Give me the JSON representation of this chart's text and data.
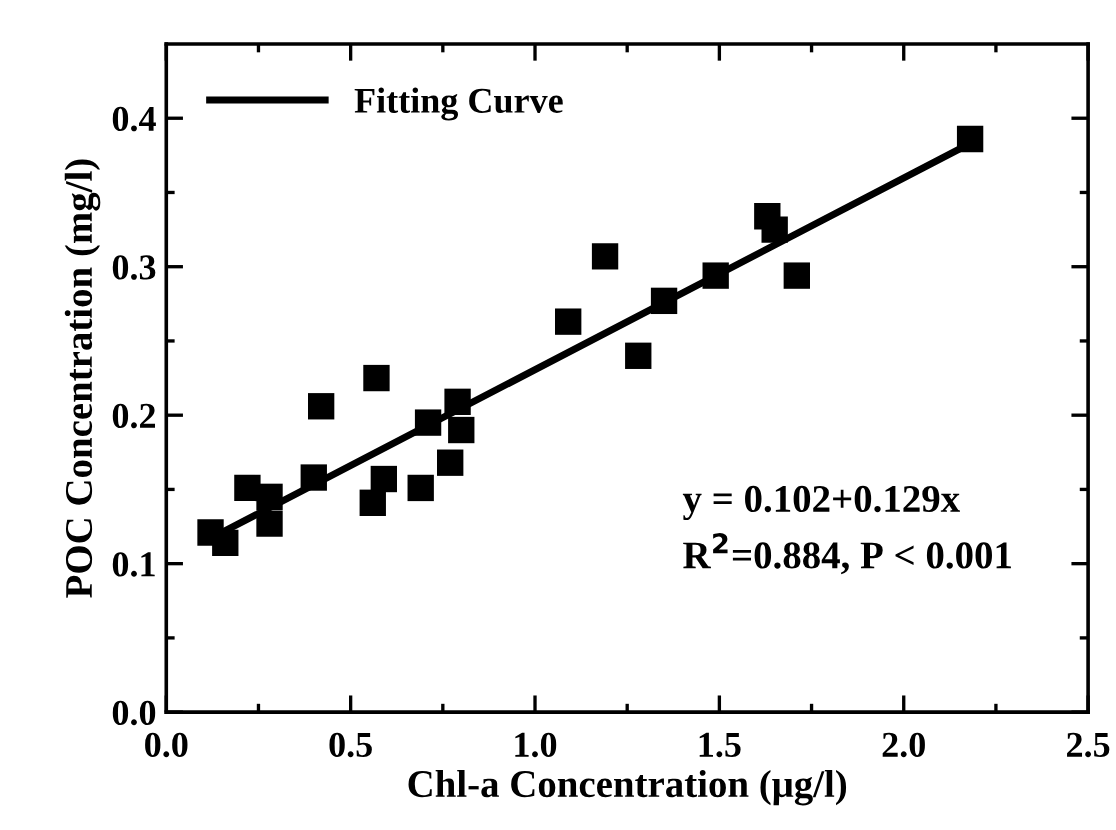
{
  "chart_data": {
    "type": "scatter",
    "xlabel": "Chl-a Concentration (μg/l)",
    "ylabel": "POC Concentration (mg/l)",
    "xlim": [
      0,
      2.5
    ],
    "ylim": [
      0,
      0.45
    ],
    "xticks": [
      {
        "value": 0,
        "label": "0.0"
      },
      {
        "value": 0.25,
        "label": null
      },
      {
        "value": 0.5,
        "label": "0.5"
      },
      {
        "value": 0.75,
        "label": null
      },
      {
        "value": 1,
        "label": "1.0"
      },
      {
        "value": 1.25,
        "label": null
      },
      {
        "value": 1.5,
        "label": "1.5"
      },
      {
        "value": 1.75,
        "label": null
      },
      {
        "value": 2,
        "label": "2.0"
      },
      {
        "value": 2.25,
        "label": null
      },
      {
        "value": 2.5,
        "label": "2.5"
      }
    ],
    "yticks": [
      {
        "value": 0,
        "label": "0.0"
      },
      {
        "value": 0.05,
        "label": null
      },
      {
        "value": 0.1,
        "label": "0.1"
      },
      {
        "value": 0.15,
        "label": null
      },
      {
        "value": 0.2,
        "label": "0.2"
      },
      {
        "value": 0.25,
        "label": null
      },
      {
        "value": 0.3,
        "label": "0.3"
      },
      {
        "value": 0.35,
        "label": null
      },
      {
        "value": 0.4,
        "label": "0.4"
      }
    ],
    "grid": false,
    "legend": "top left",
    "series": [
      {
        "marker": "square",
        "color": "#000000",
        "x": [
          0.12,
          0.16,
          0.22,
          0.28,
          0.28,
          0.4,
          0.42,
          0.56,
          0.57,
          0.59,
          0.69,
          0.71,
          0.77,
          0.79,
          0.8,
          1.09,
          1.19,
          1.28,
          1.35,
          1.49,
          1.63,
          1.65,
          1.71,
          2.18
        ],
        "values": [
          0.121,
          0.114,
          0.151,
          0.145,
          0.127,
          0.158,
          0.206,
          0.141,
          0.225,
          0.157,
          0.151,
          0.195,
          0.168,
          0.209,
          0.19,
          0.263,
          0.307,
          0.24,
          0.277,
          0.294,
          0.334,
          0.325,
          0.294,
          0.386
        ]
      },
      {
        "type": "line",
        "marker": "none",
        "name": "Fitting Curve",
        "color": "#000000",
        "x": [
          0.12,
          2.18
        ],
        "values": [
          0.117,
          0.383
        ]
      }
    ],
    "annotations": [
      "y = 0.102+0.129x",
      "R$^{2}$=0.884, P < 0.001"
    ]
  }
}
